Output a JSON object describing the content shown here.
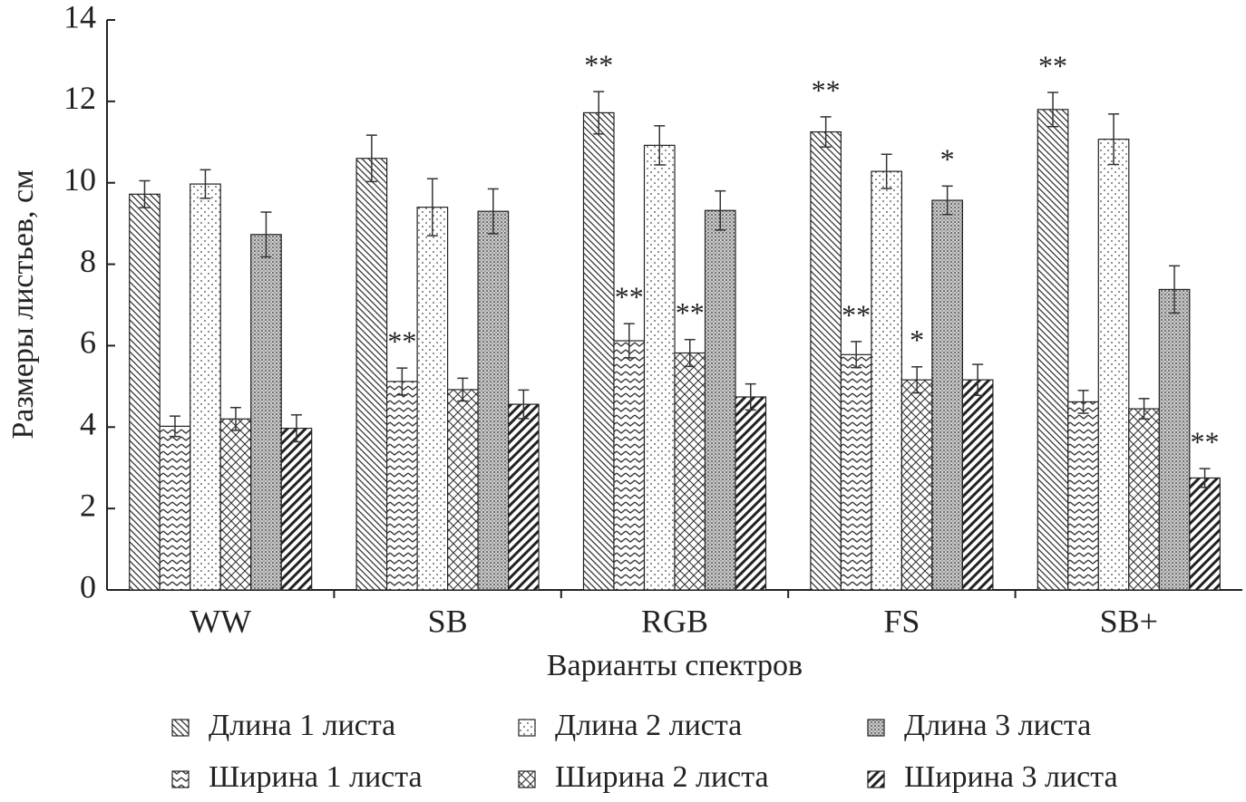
{
  "chart_data": {
    "type": "bar",
    "y_label": "Размеры листьев, см",
    "x_label": "Варианты спектров",
    "categories": [
      "WW",
      "SB",
      "RGB",
      "FS",
      "SB+"
    ],
    "ylim": [
      0,
      14
    ],
    "yticks": [
      0,
      2,
      4,
      6,
      8,
      10,
      12,
      14
    ],
    "series": [
      {
        "name": "Длина 1 листа",
        "values": [
          9.72,
          10.6,
          11.72,
          11.25,
          11.8
        ],
        "errors": [
          0.33,
          0.57,
          0.52,
          0.37,
          0.42
        ],
        "annotations": [
          null,
          null,
          "**",
          "**",
          "**"
        ]
      },
      {
        "name": "Ширина 1 листа",
        "values": [
          4.02,
          5.12,
          6.12,
          5.78,
          4.62
        ],
        "errors": [
          0.25,
          0.33,
          0.42,
          0.32,
          0.28
        ],
        "annotations": [
          null,
          "**",
          "**",
          "**",
          null
        ]
      },
      {
        "name": "Длина 2 листа",
        "values": [
          9.97,
          9.4,
          10.92,
          10.28,
          11.07
        ],
        "errors": [
          0.35,
          0.7,
          0.48,
          0.42,
          0.62
        ],
        "annotations": [
          null,
          null,
          null,
          null,
          null
        ]
      },
      {
        "name": "Ширина 2 листа",
        "values": [
          4.2,
          4.92,
          5.82,
          5.16,
          4.45
        ],
        "errors": [
          0.28,
          0.28,
          0.33,
          0.32,
          0.25
        ],
        "annotations": [
          null,
          null,
          "**",
          "*",
          null
        ]
      },
      {
        "name": "Длина 3 листа",
        "values": [
          8.73,
          9.3,
          9.32,
          9.57,
          7.38
        ],
        "errors": [
          0.55,
          0.55,
          0.48,
          0.35,
          0.58
        ],
        "annotations": [
          null,
          null,
          null,
          "*",
          null
        ]
      },
      {
        "name": "Ширина 3 листа",
        "values": [
          3.97,
          4.56,
          4.74,
          5.16,
          2.75
        ],
        "errors": [
          0.33,
          0.35,
          0.32,
          0.38,
          0.23
        ],
        "annotations": [
          null,
          null,
          null,
          null,
          "**"
        ]
      }
    ]
  }
}
